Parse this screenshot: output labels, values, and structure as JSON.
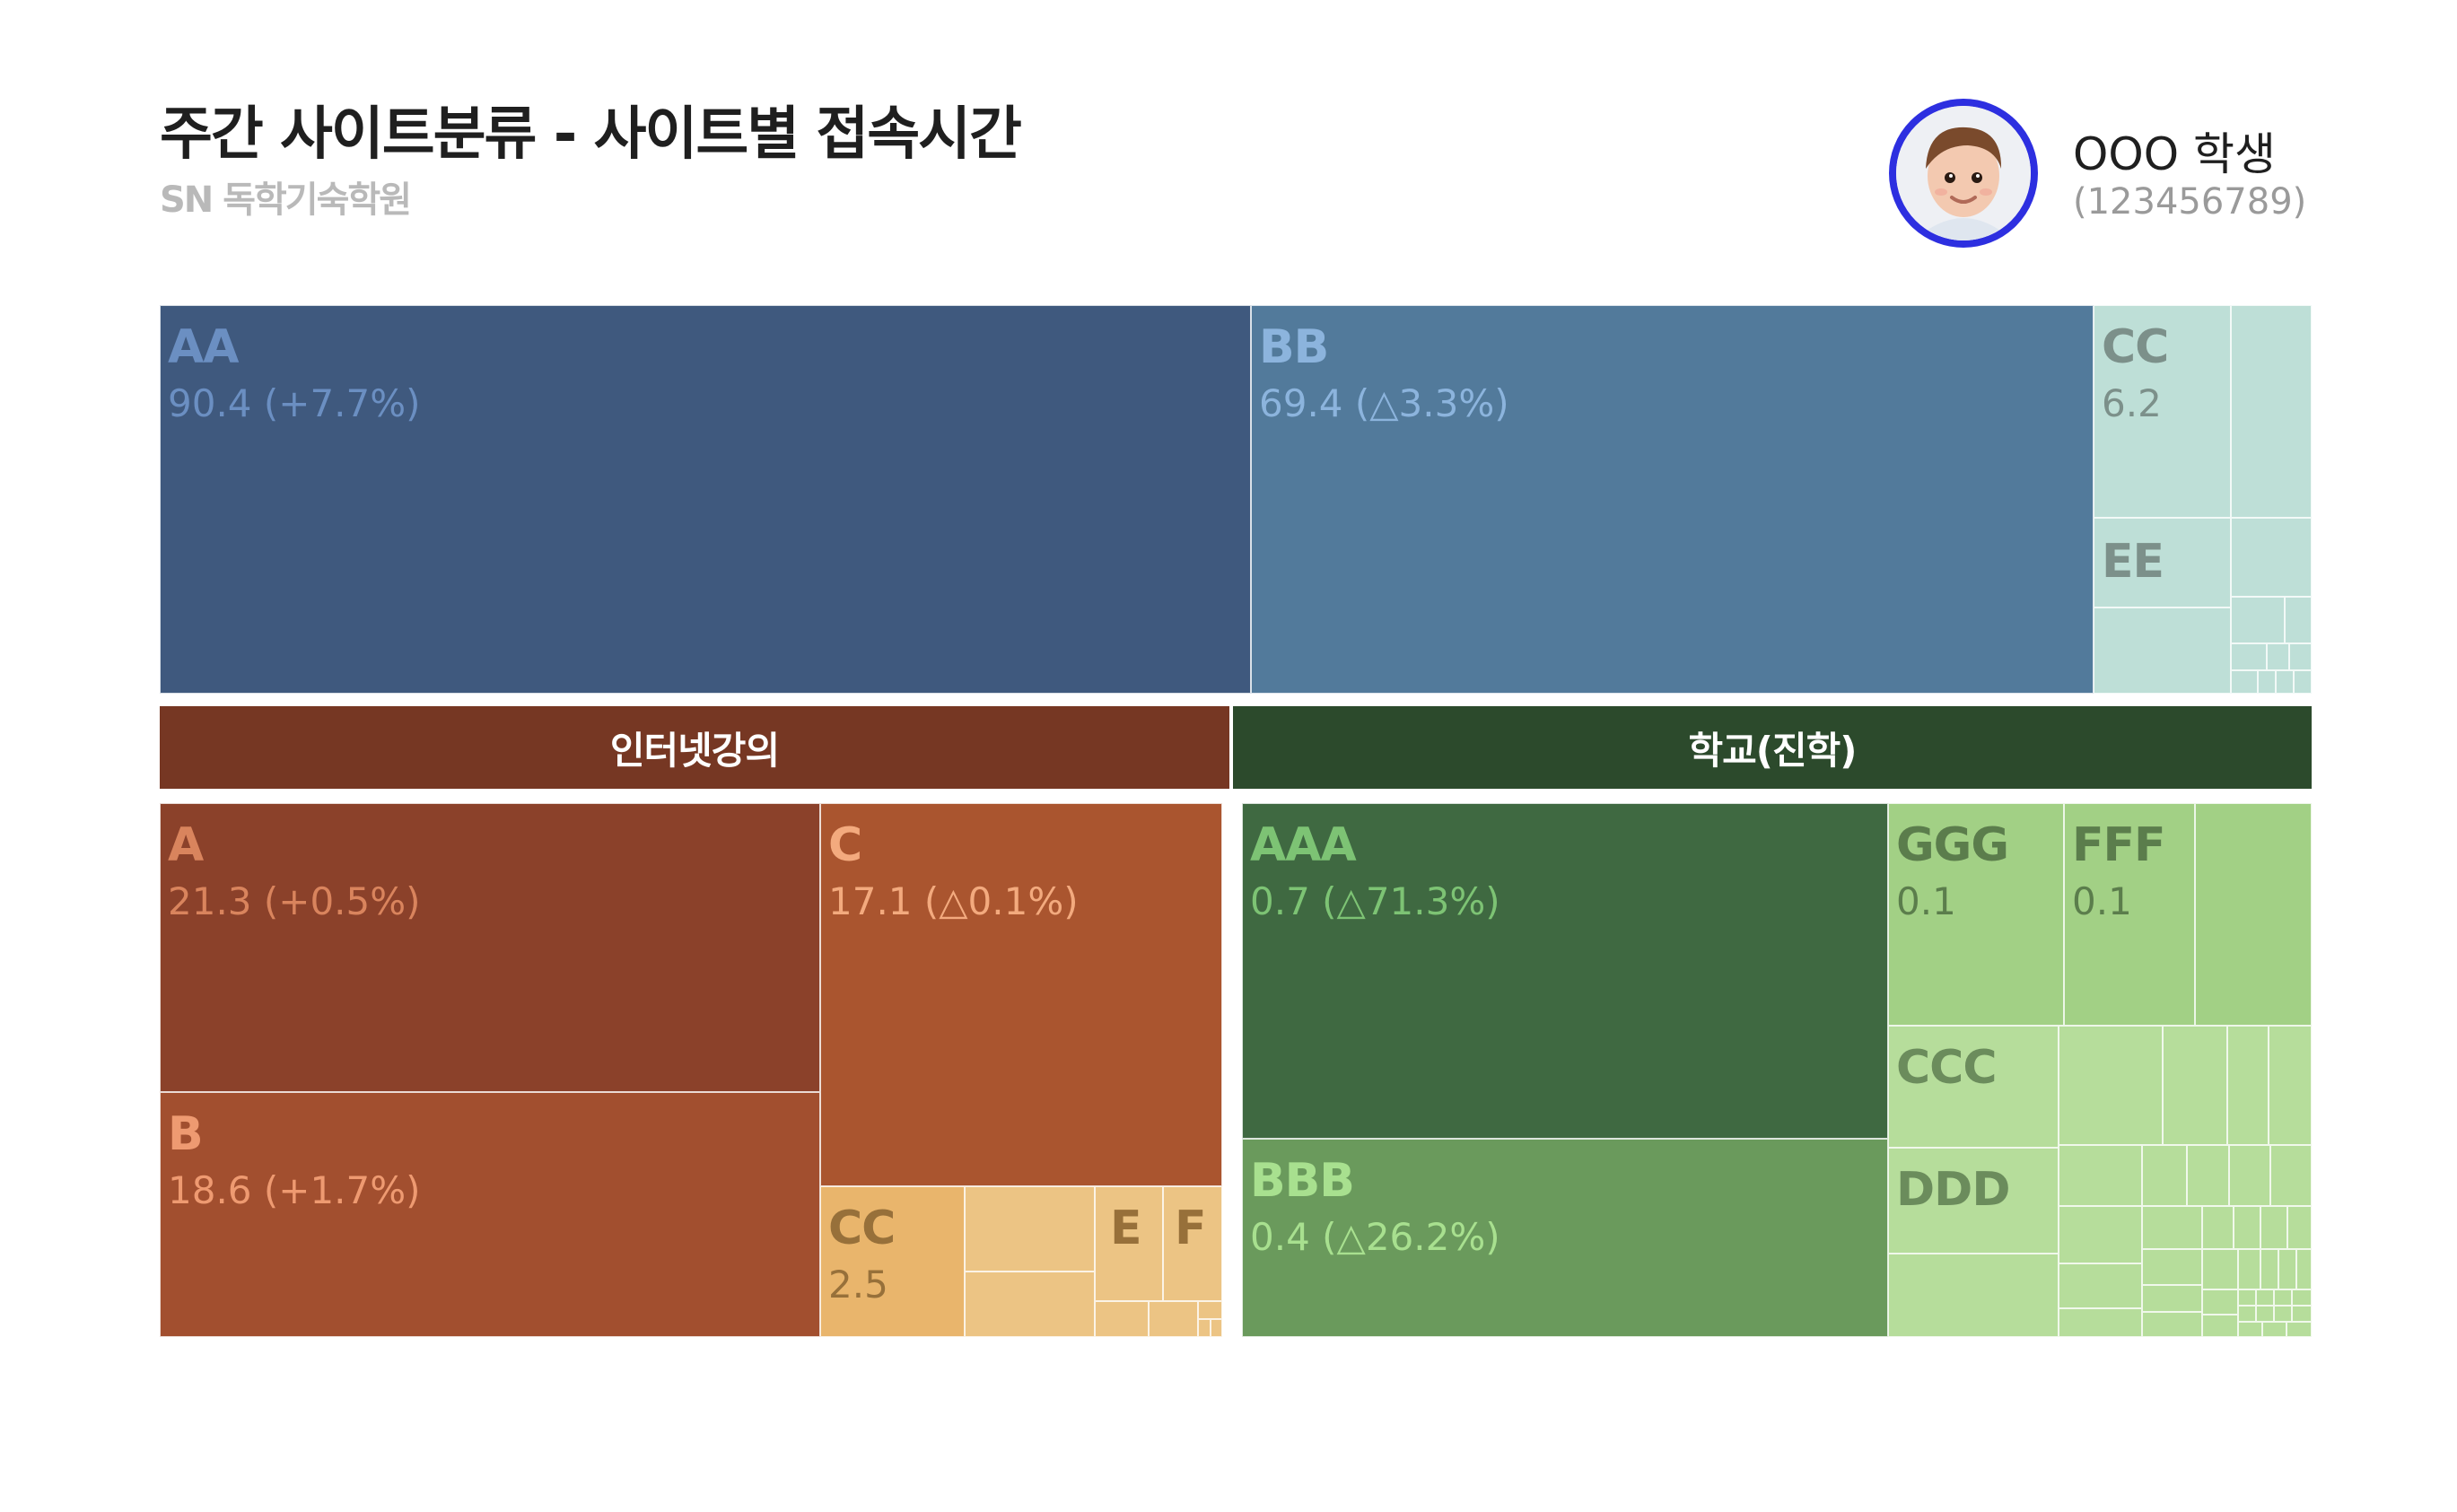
{
  "header": {
    "title": "주간 사이트분류 - 사이트별 접속시간",
    "brand": "SN 독학기숙학원"
  },
  "user": {
    "name": "OOO 학생",
    "id": "(123456789)"
  },
  "chart_data": {
    "type": "treemap",
    "groups": [
      {
        "name": "",
        "items": [
          {
            "label": "AA",
            "value": 90.4,
            "change": "+7.7%",
            "display": "90.4 (+7.7%)"
          },
          {
            "label": "BB",
            "value": 69.4,
            "change": "△3.3%",
            "display": "69.4 (△3.3%)"
          },
          {
            "label": "CC",
            "value": 6.2,
            "display": "6.2"
          },
          {
            "label": "EE"
          }
        ]
      },
      {
        "name": "인터넷강의",
        "items": [
          {
            "label": "A",
            "value": 21.3,
            "change": "+0.5%",
            "display": "21.3 (+0.5%)"
          },
          {
            "label": "C",
            "value": 17.1,
            "change": "△0.1%",
            "display": "17.1 (△0.1%)"
          },
          {
            "label": "B",
            "value": 18.6,
            "change": "+1.7%",
            "display": "18.6 (+1.7%)"
          },
          {
            "label": "CC",
            "value": 2.5,
            "display": "2.5"
          },
          {
            "label": "E"
          },
          {
            "label": "F"
          }
        ]
      },
      {
        "name": "학교(진학)",
        "items": [
          {
            "label": "AAA",
            "value": 0.7,
            "change": "△71.3%",
            "display": "0.7 (△71.3%)"
          },
          {
            "label": "BBB",
            "value": 0.4,
            "change": "△26.2%",
            "display": "0.4 (△26.2%)"
          },
          {
            "label": "GGG",
            "value": 0.1,
            "display": "0.1"
          },
          {
            "label": "FFF",
            "value": 0.1,
            "display": "0.1"
          },
          {
            "label": "CCC"
          },
          {
            "label": "DDD"
          }
        ]
      }
    ]
  },
  "colors": {
    "AA": "#3f597e",
    "BB": "#527a9b",
    "top_small": "#bedfd7",
    "group_lecture_bar": "#763723",
    "group_school_bar": "#2c4a2c",
    "A": "#8b412a",
    "B": "#a24f2f",
    "C": "#aa552f",
    "lecture_small": "#eac27e",
    "AAA": "#3f6941",
    "BBB": "#6a9a5c",
    "school_mid": "#a2d085",
    "school_small": "#b6dd9b"
  }
}
